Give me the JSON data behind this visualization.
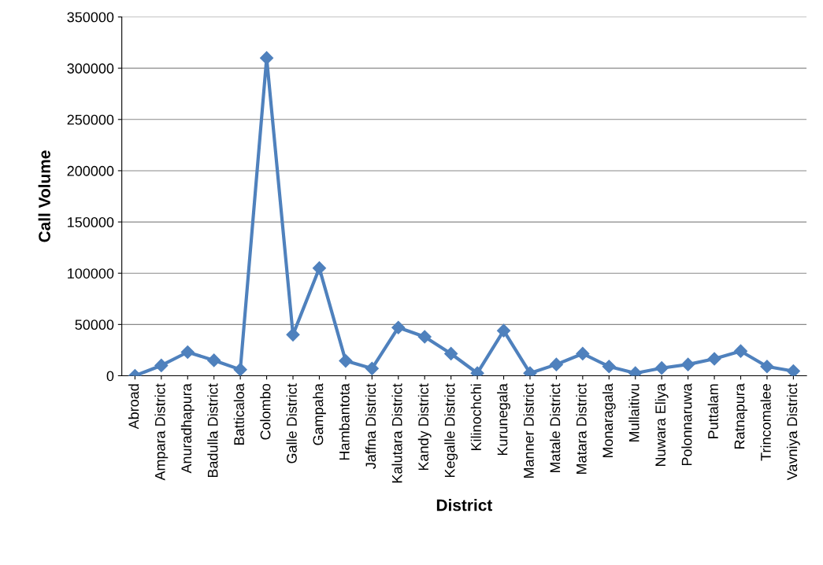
{
  "chart_data": {
    "type": "line",
    "xlabel": "District",
    "ylabel": "Call Volume",
    "categories": [
      "Abroad",
      "Ampara District",
      "Anuradhapura",
      "Badulla District",
      "Batticaloa",
      "Colombo",
      "Galle District",
      "Gampaha",
      "Hambantota",
      "Jaffna District",
      "Kalutara District",
      "Kandy District",
      "Kegalle District",
      "Kilinochchi",
      "Kurunegala",
      "Manner District",
      "Matale District",
      "Matara District",
      "Monaragala",
      "Mullaitivu",
      "Nuwara Eliya",
      "Polonnaruwa",
      "Puttalam",
      "Ratnapura",
      "Trincomalee",
      "Vavniya District"
    ],
    "series": [
      {
        "color": "#4f81bd",
        "values": [
          0,
          10000,
          23000,
          15000,
          6000,
          310000,
          40000,
          105000,
          14500,
          7000,
          47000,
          38000,
          21500,
          2500,
          44000,
          2500,
          11000,
          21500,
          9000,
          2500,
          7500,
          11000,
          16500,
          24000,
          9000,
          4500
        ]
      }
    ],
    "ylim": [
      0,
      350000
    ],
    "yticks": [
      0,
      50000,
      100000,
      150000,
      200000,
      250000,
      300000,
      350000
    ],
    "grid": "y",
    "legend": false,
    "marker": "diamond",
    "line_style": "solid"
  }
}
